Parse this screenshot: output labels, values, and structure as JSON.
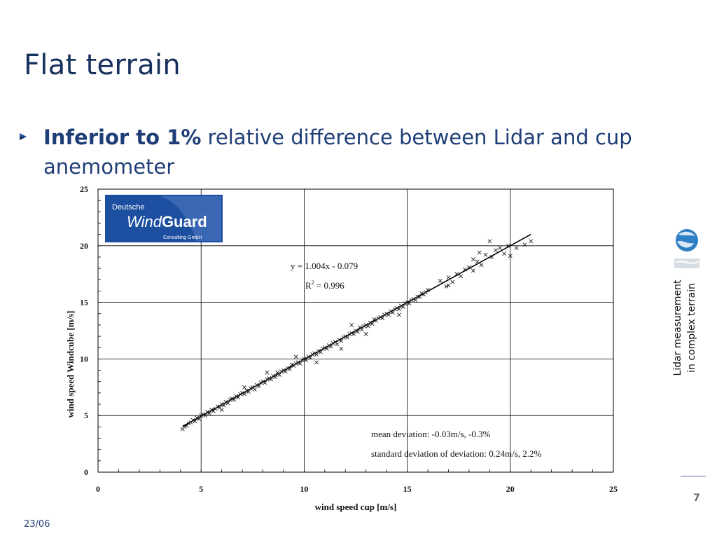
{
  "slide": {
    "title": "Flat terrain",
    "bullet_bold": "Inferior to 1%",
    "bullet_text": " relative difference between Lidar and cup anemometer",
    "side_caption_line1": "Lidar measurement",
    "side_caption_line2": "in complex terrain",
    "page_number": "7",
    "footer_date": "23/06",
    "accent_color": "#17305c",
    "text_color": "#1f3e78"
  },
  "logo": {
    "line1": "Deutsche",
    "word1": "Wind",
    "word2": "Guard",
    "line3": "Consulting GmbH",
    "color": "#1d4fa0"
  },
  "chart_data": {
    "type": "scatter",
    "xlabel": "wind speed cup [m/s]",
    "ylabel": "wind speed Windcube [m/s]",
    "xlim": [
      0,
      25
    ],
    "ylim": [
      0,
      25
    ],
    "xticks": [
      "0",
      "5",
      "10",
      "15",
      "20",
      "25"
    ],
    "yticks": [
      "0",
      "5",
      "10",
      "15",
      "20",
      "25"
    ],
    "grid": true,
    "marker": "x",
    "regression": {
      "slope": 1.004,
      "intercept": -0.079,
      "x_range": [
        4.1,
        21.0
      ]
    },
    "annotations": {
      "equation": "y = 1.004x - 0.079",
      "r2_prefix": "R",
      "r2_exp": "2",
      "r2_value": " = 0.996",
      "mean_deviation": "mean deviation: -0.03m/s, -0.3%",
      "std_deviation": "standard deviation of deviation: 0.24m/s, 2.2%"
    },
    "points": [
      [
        4.1,
        3.8
      ],
      [
        4.2,
        4.0
      ],
      [
        4.3,
        4.1
      ],
      [
        4.4,
        4.3
      ],
      [
        4.5,
        4.4
      ],
      [
        4.6,
        4.6
      ],
      [
        4.7,
        4.5
      ],
      [
        4.8,
        4.8
      ],
      [
        4.9,
        4.7
      ],
      [
        5.0,
        5.0
      ],
      [
        5.1,
        5.1
      ],
      [
        5.2,
        5.0
      ],
      [
        5.3,
        5.3
      ],
      [
        5.4,
        5.2
      ],
      [
        5.5,
        5.5
      ],
      [
        5.6,
        5.4
      ],
      [
        5.7,
        5.6
      ],
      [
        5.8,
        5.8
      ],
      [
        5.9,
        5.7
      ],
      [
        6.0,
        6.0
      ],
      [
        6.1,
        5.9
      ],
      [
        6.2,
        6.2
      ],
      [
        6.3,
        6.1
      ],
      [
        6.4,
        6.4
      ],
      [
        6.5,
        6.5
      ],
      [
        6.6,
        6.4
      ],
      [
        6.7,
        6.7
      ],
      [
        6.8,
        6.6
      ],
      [
        6.9,
        6.9
      ],
      [
        7.0,
        7.0
      ],
      [
        7.1,
        6.9
      ],
      [
        7.2,
        7.2
      ],
      [
        7.3,
        7.1
      ],
      [
        7.4,
        7.4
      ],
      [
        7.5,
        7.5
      ],
      [
        7.6,
        7.3
      ],
      [
        7.7,
        7.7
      ],
      [
        7.8,
        7.6
      ],
      [
        7.9,
        7.9
      ],
      [
        8.0,
        8.0
      ],
      [
        8.1,
        7.9
      ],
      [
        8.2,
        8.2
      ],
      [
        8.3,
        8.3
      ],
      [
        8.4,
        8.2
      ],
      [
        8.5,
        8.5
      ],
      [
        8.6,
        8.4
      ],
      [
        8.7,
        8.8
      ],
      [
        8.8,
        8.6
      ],
      [
        8.9,
        8.9
      ],
      [
        9.0,
        9.0
      ],
      [
        9.1,
        8.9
      ],
      [
        9.2,
        9.2
      ],
      [
        9.3,
        9.1
      ],
      [
        9.4,
        9.5
      ],
      [
        9.5,
        9.4
      ],
      [
        9.6,
        9.6
      ],
      [
        9.7,
        9.7
      ],
      [
        9.8,
        9.6
      ],
      [
        9.9,
        9.9
      ],
      [
        10.0,
        10.0
      ],
      [
        10.1,
        9.9
      ],
      [
        10.2,
        10.2
      ],
      [
        10.3,
        10.1
      ],
      [
        10.4,
        10.4
      ],
      [
        10.5,
        10.5
      ],
      [
        10.6,
        10.4
      ],
      [
        10.7,
        10.7
      ],
      [
        10.8,
        10.6
      ],
      [
        10.9,
        10.9
      ],
      [
        11.0,
        11.0
      ],
      [
        11.1,
        10.9
      ],
      [
        11.2,
        11.2
      ],
      [
        11.3,
        11.1
      ],
      [
        11.4,
        11.4
      ],
      [
        11.5,
        11.5
      ],
      [
        11.6,
        11.3
      ],
      [
        11.7,
        11.7
      ],
      [
        11.8,
        11.6
      ],
      [
        11.9,
        11.9
      ],
      [
        12.0,
        12.0
      ],
      [
        12.1,
        11.9
      ],
      [
        12.2,
        12.2
      ],
      [
        12.3,
        12.3
      ],
      [
        12.4,
        12.2
      ],
      [
        12.5,
        12.5
      ],
      [
        12.6,
        12.4
      ],
      [
        12.7,
        12.8
      ],
      [
        12.8,
        12.6
      ],
      [
        12.9,
        12.9
      ],
      [
        13.0,
        13.0
      ],
      [
        13.1,
        12.9
      ],
      [
        13.2,
        13.2
      ],
      [
        13.3,
        13.1
      ],
      [
        13.4,
        13.5
      ],
      [
        13.5,
        13.4
      ],
      [
        13.6,
        13.6
      ],
      [
        13.7,
        13.7
      ],
      [
        13.8,
        13.6
      ],
      [
        13.9,
        13.9
      ],
      [
        14.0,
        14.0
      ],
      [
        14.1,
        13.9
      ],
      [
        14.2,
        14.2
      ],
      [
        14.3,
        14.1
      ],
      [
        14.4,
        14.4
      ],
      [
        14.5,
        14.5
      ],
      [
        14.6,
        14.4
      ],
      [
        14.7,
        14.7
      ],
      [
        14.8,
        14.6
      ],
      [
        14.9,
        14.9
      ],
      [
        15.0,
        15.0
      ],
      [
        15.1,
        14.9
      ],
      [
        15.2,
        15.2
      ],
      [
        15.3,
        15.3
      ],
      [
        15.4,
        15.2
      ],
      [
        15.5,
        15.5
      ],
      [
        15.6,
        15.5
      ],
      [
        15.7,
        15.8
      ],
      [
        15.8,
        15.7
      ],
      [
        15.9,
        15.9
      ],
      [
        16.0,
        16.1
      ],
      [
        10.6,
        9.7
      ],
      [
        9.6,
        10.2
      ],
      [
        13.0,
        12.2
      ],
      [
        11.8,
        10.9
      ],
      [
        14.6,
        13.9
      ],
      [
        8.2,
        8.8
      ],
      [
        12.3,
        13.0
      ],
      [
        7.1,
        7.5
      ],
      [
        6.0,
        5.5
      ],
      [
        16.9,
        16.4
      ],
      [
        17.0,
        17.2
      ],
      [
        17.2,
        16.8
      ],
      [
        17.4,
        17.5
      ],
      [
        17.6,
        17.3
      ],
      [
        17.8,
        17.9
      ],
      [
        18.0,
        18.1
      ],
      [
        18.2,
        17.8
      ],
      [
        18.4,
        18.6
      ],
      [
        18.5,
        19.4
      ],
      [
        18.6,
        18.3
      ],
      [
        18.8,
        19.2
      ],
      [
        19.0,
        20.4
      ],
      [
        19.1,
        19.0
      ],
      [
        19.3,
        19.6
      ],
      [
        19.5,
        19.8
      ],
      [
        19.7,
        19.3
      ],
      [
        19.9,
        20.0
      ],
      [
        20.0,
        19.1
      ],
      [
        20.3,
        19.8
      ],
      [
        20.7,
        20.1
      ],
      [
        21.0,
        20.4
      ],
      [
        17.0,
        16.5
      ],
      [
        18.2,
        18.8
      ],
      [
        16.6,
        16.9
      ]
    ]
  }
}
